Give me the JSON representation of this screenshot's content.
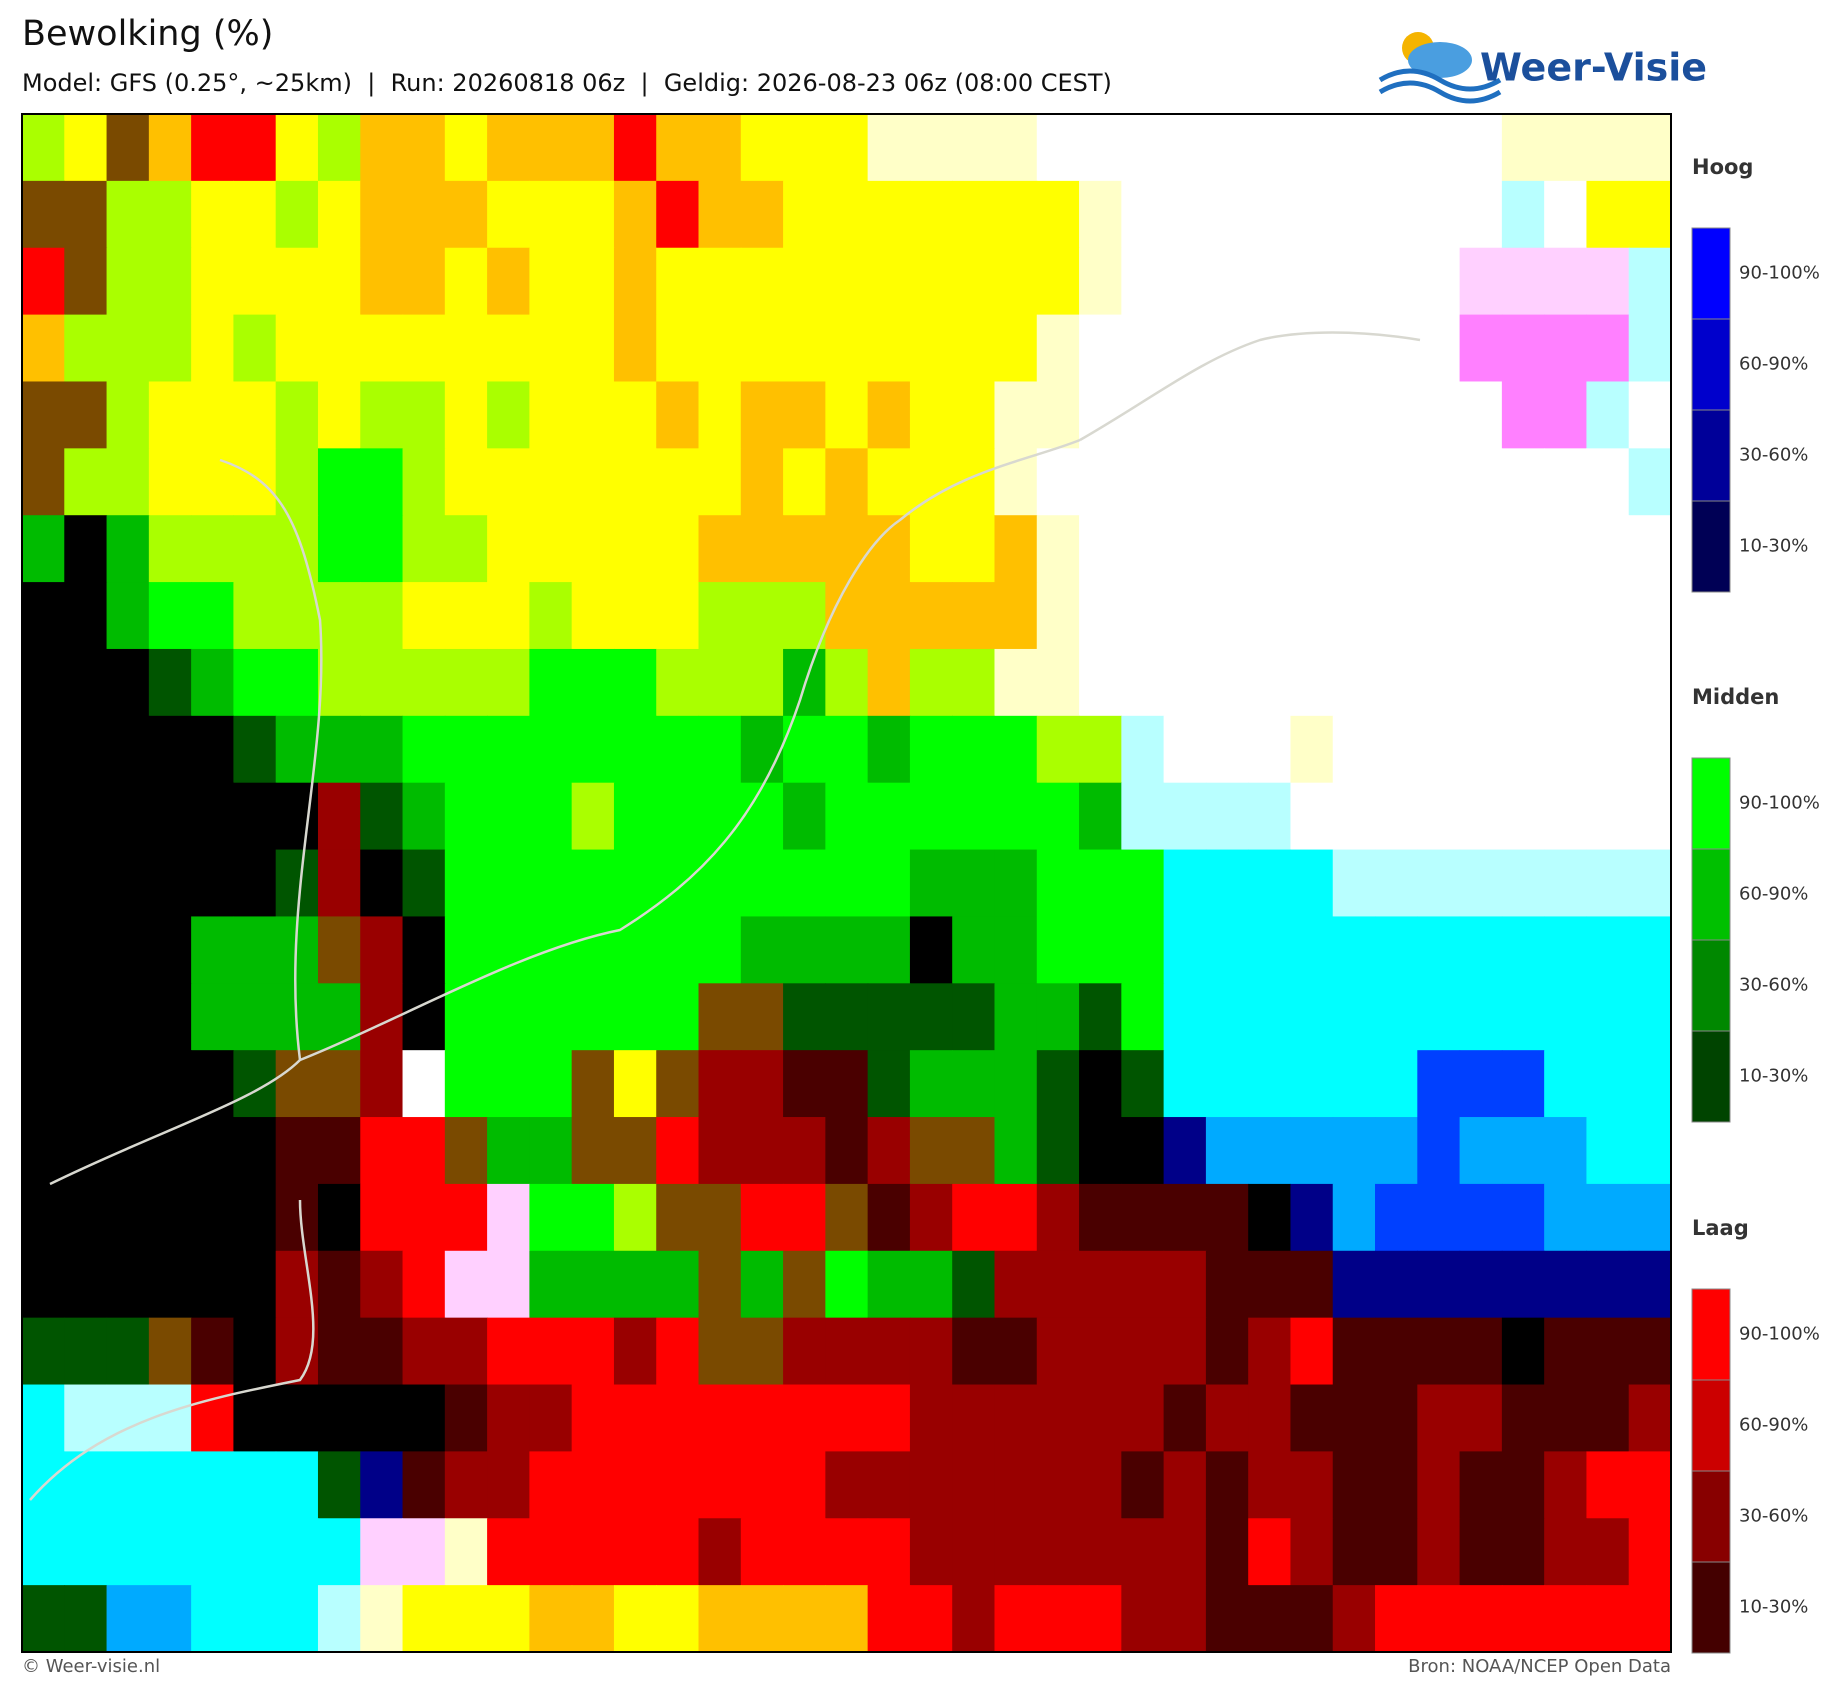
{
  "header": {
    "title": "Bewolking (%)",
    "subtitle": "Model: GFS (0.25°, ~25km)  |  Run: 20260818 06z  |  Geldig: 2026-08-23 06z (08:00 CEST)",
    "logo": "Weer-Visie"
  },
  "legend": [
    {
      "title": "Hoog",
      "labels": [
        "90-100%",
        "60-90%",
        "30-60%",
        "10-30%"
      ]
    },
    {
      "title": "Midden",
      "labels": [
        "90-100%",
        "60-90%",
        "30-60%",
        "10-30%"
      ]
    },
    {
      "title": "Laag",
      "labels": [
        "90-100%",
        "60-90%",
        "30-60%",
        "10-30%"
      ]
    }
  ],
  "footer": {
    "left": "© Weer-visie.nl",
    "right": "Bron: NOAA/NCEP Open Data"
  }
}
